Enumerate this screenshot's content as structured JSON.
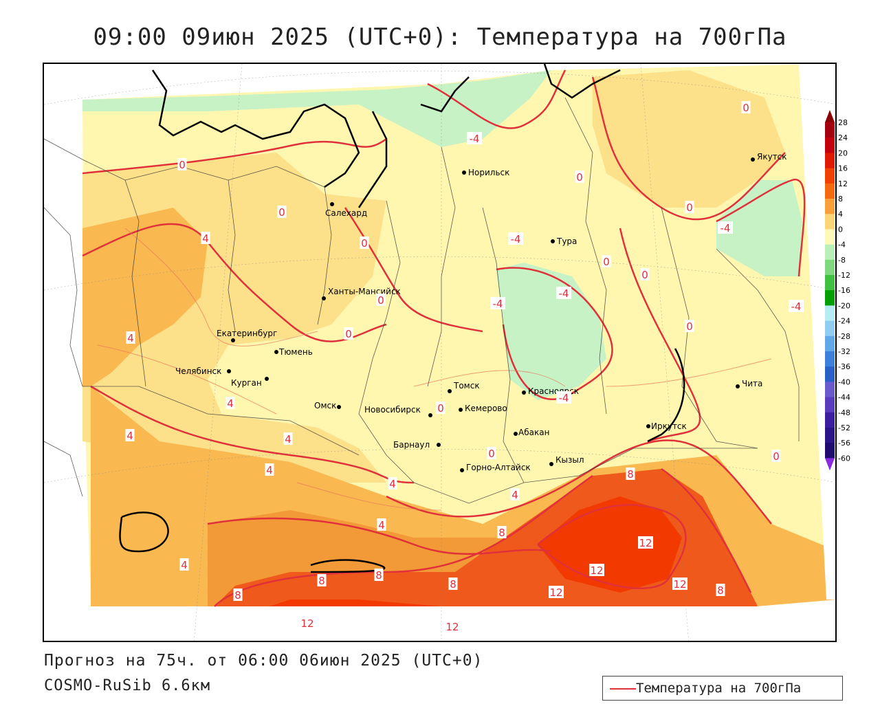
{
  "title": "09:00 09июн 2025 (UTC+0): Температура на 700гПа",
  "footer": {
    "forecast": "Прогноз на 75ч. от 06:00 06июн 2025 (UTC+0)",
    "model": "COSMO-RuSib 6.6км"
  },
  "legend": {
    "label": "Температура на 700гПа",
    "line_color": "#e0303a"
  },
  "colorbar": {
    "labels": [
      "28",
      "24",
      "20",
      "16",
      "12",
      "8",
      "4",
      "0",
      "-4",
      "-8",
      "-12",
      "-16",
      "-20",
      "-24",
      "-28",
      "-32",
      "-36",
      "-40",
      "-44",
      "-48",
      "-52",
      "-56",
      "-60"
    ],
    "colors": [
      "#8b0000",
      "#a50010",
      "#c4000f",
      "#e01a00",
      "#f24000",
      "#f56a10",
      "#f9a03a",
      "#fcd576",
      "#fff8b8",
      "#b8f0b8",
      "#7fd87f",
      "#40c040",
      "#00a000",
      "#b8ecf4",
      "#90cdf0",
      "#60a8e8",
      "#3c80dc",
      "#2a5fc8",
      "#6a5acd",
      "#5a3cbe",
      "#3c1ea0",
      "#2a1488",
      "#200a70"
    ]
  },
  "cities": [
    {
      "name": "Норильск"
    },
    {
      "name": "Салехард"
    },
    {
      "name": "Тура"
    },
    {
      "name": "Якутск"
    },
    {
      "name": "Ханты-Мансийск"
    },
    {
      "name": "Екатеринбург"
    },
    {
      "name": "Тюмень"
    },
    {
      "name": "Челябинск"
    },
    {
      "name": "Курган"
    },
    {
      "name": "Омск"
    },
    {
      "name": "Новосибирск"
    },
    {
      "name": "Томск"
    },
    {
      "name": "Кемерово"
    },
    {
      "name": "Красноярск"
    },
    {
      "name": "Абакан"
    },
    {
      "name": "Барнаул"
    },
    {
      "name": "Горно-Алтайск"
    },
    {
      "name": "Кызыл"
    },
    {
      "name": "Иркутск"
    },
    {
      "name": "Чита"
    }
  ],
  "contour_labels": [
    "0",
    "0",
    "0",
    "0",
    "0",
    "0",
    "0",
    "0",
    "0",
    "0",
    "0",
    "0",
    "0",
    "0",
    "-4",
    "-4",
    "-4",
    "-4",
    "-4",
    "-4",
    "-4",
    "4",
    "4",
    "4",
    "4",
    "4",
    "4",
    "4",
    "4",
    "4",
    "4",
    "8",
    "8",
    "8",
    "8",
    "8",
    "8",
    "8",
    "12",
    "12",
    "12",
    "12",
    "12",
    "12"
  ]
}
